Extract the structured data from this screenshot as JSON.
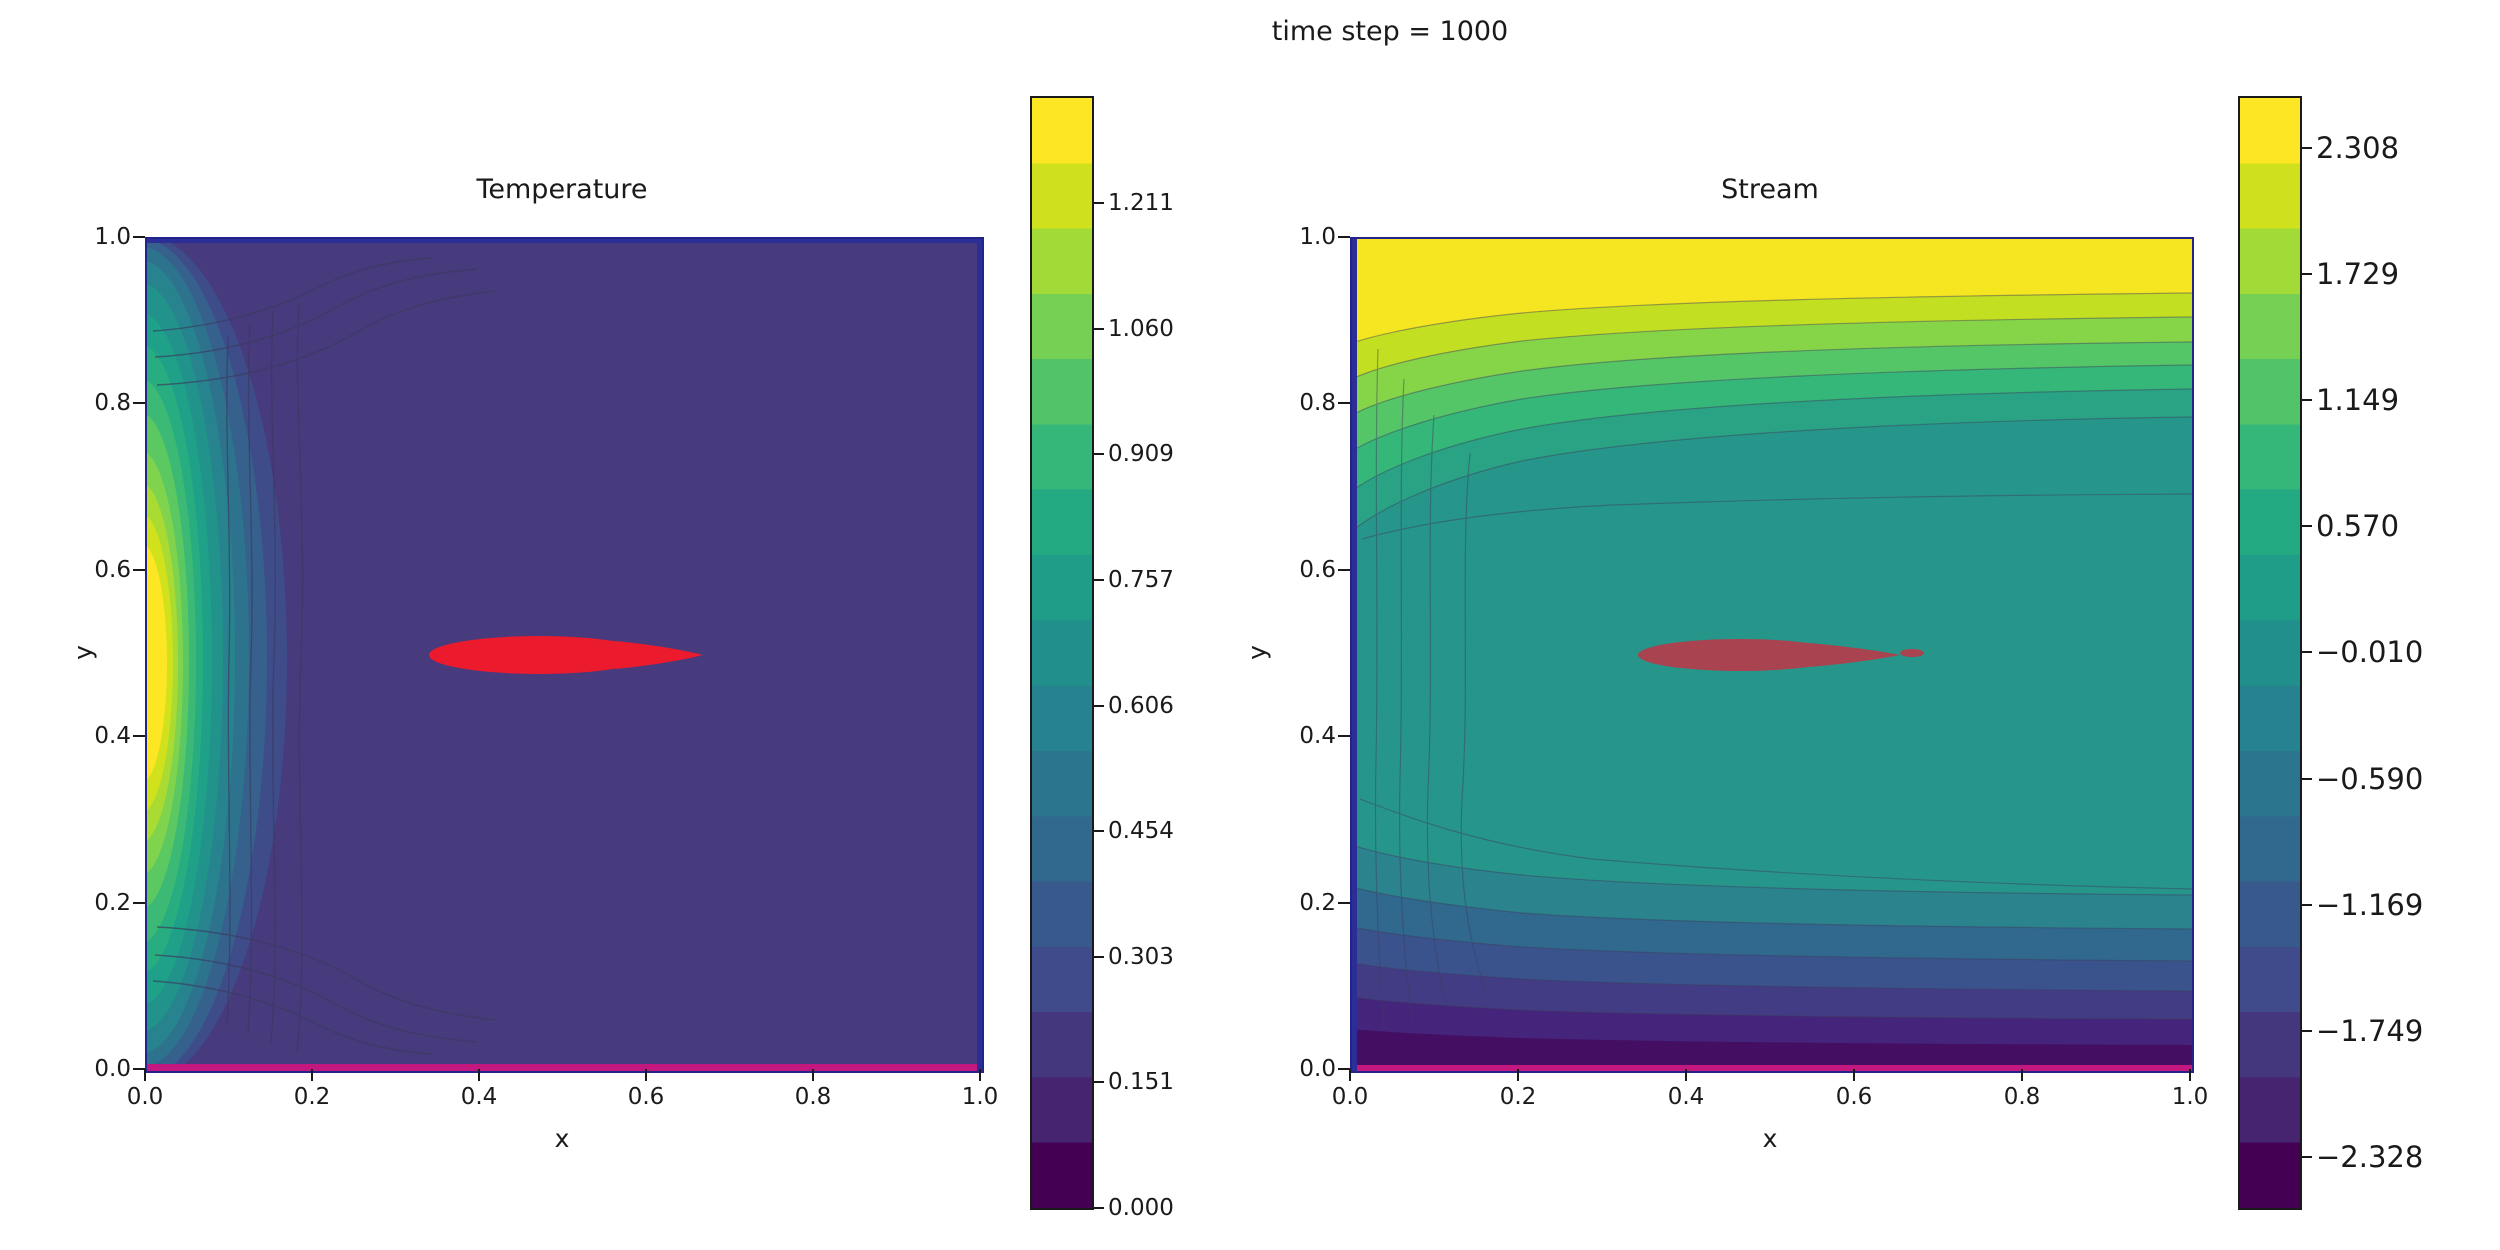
{
  "figure": {
    "suptitle": "time step = 1000"
  },
  "palette": {
    "viridis": [
      "#440154",
      "#46246f",
      "#45377e",
      "#3f4b8a",
      "#38598c",
      "#31688e",
      "#2b758e",
      "#26828e",
      "#21908c",
      "#1f9d88",
      "#24aa83",
      "#35b779",
      "#52c369",
      "#76d054",
      "#a2da37",
      "#cfe11c",
      "#fde725"
    ],
    "temperature_over_color": "#eb1a2d",
    "stream_over_color": "#a8434f",
    "under_color": "#c2187f",
    "spine_accent": "#2a2e96"
  },
  "chart_data": [
    {
      "type": "contour",
      "title": "Temperature",
      "xlabel": "x",
      "ylabel": "y",
      "xlim": [
        0.0,
        1.0
      ],
      "ylim": [
        0.0,
        1.0
      ],
      "xticks": [
        "0.0",
        "0.2",
        "0.4",
        "0.6",
        "0.8",
        "1.0"
      ],
      "yticks": [
        "1.0",
        "0.8",
        "0.6",
        "0.4",
        "0.2",
        "0.0"
      ],
      "colormap": "viridis",
      "colorbar_ticks": [
        "1.211",
        "1.060",
        "0.909",
        "0.757",
        "0.606",
        "0.454",
        "0.303",
        "0.151",
        "0.000"
      ],
      "colorbar_range": [
        0.0,
        1.362
      ],
      "description": "Hot plume hugging the left wall: yellow core near x<0.07 and y 0.3-0.7, grading through green and teal bands into a purple background; many thin contour lines near the left wall fanning toward top-left and bottom-left; bright red over-range ellipse centered near (0.47, 0.5) spanning x 0.34-0.65; magenta under-range line along y=0."
    },
    {
      "type": "contour",
      "title": "Stream",
      "xlabel": "x",
      "ylabel": "y",
      "xlim": [
        0.0,
        1.0
      ],
      "ylim": [
        0.0,
        1.0
      ],
      "xticks": [
        "0.0",
        "0.2",
        "0.4",
        "0.6",
        "0.8",
        "1.0"
      ],
      "yticks": [
        "1.0",
        "0.8",
        "0.6",
        "0.4",
        "0.2",
        "0.0"
      ],
      "colormap": "viridis",
      "colorbar_ticks": [
        "2.308",
        "1.729",
        "1.149",
        "0.570",
        "−0.010",
        "−0.590",
        "−1.169",
        "−1.749",
        "−2.328"
      ],
      "colorbar_range": [
        -2.6,
        2.6
      ],
      "description": "Horizontally banded stream function: yellow band along the top (y>0.92) grading through green into a broad teal interior, then through blue to dark purple near the bottom (y<0.05); contour lines bunch along the left wall; dark red over-range ellipse near (0.46, 0.5); magenta under-range line along y=0."
    }
  ]
}
